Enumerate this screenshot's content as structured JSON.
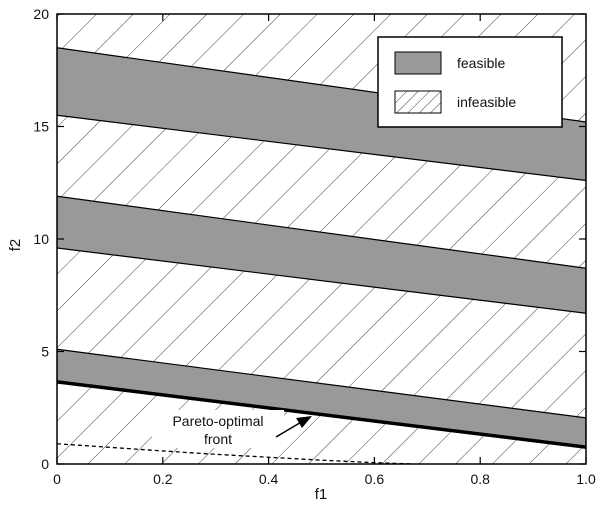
{
  "chart_data": {
    "type": "area",
    "title": "",
    "xlabel": "f1",
    "ylabel": "f2",
    "xlim": [
      0,
      1
    ],
    "ylim": [
      0,
      20
    ],
    "x_ticks": [
      "0",
      "0.2",
      "0.4",
      "0.6",
      "0.8",
      "1.0"
    ],
    "y_ticks": [
      "0",
      "5",
      "10",
      "15",
      "20"
    ],
    "grid": false,
    "legend_position": "top-right",
    "legend": [
      {
        "label": "feasible",
        "style": "filled",
        "color": "#999999"
      },
      {
        "label": "infeasible",
        "style": "hatched"
      }
    ],
    "regions": [
      {
        "type": "feasible",
        "x": [
          0,
          1
        ],
        "lower": [
          3.65,
          0.75
        ],
        "upper": [
          5.1,
          2.05
        ]
      },
      {
        "type": "feasible",
        "x": [
          0,
          1
        ],
        "lower": [
          9.6,
          6.7
        ],
        "upper": [
          11.9,
          8.7
        ]
      },
      {
        "type": "feasible",
        "x": [
          0,
          1
        ],
        "lower": [
          15.5,
          12.6
        ],
        "upper": [
          18.5,
          15.2
        ]
      }
    ],
    "pareto_front": {
      "x": [
        0,
        1
      ],
      "y": [
        3.65,
        0.75
      ]
    },
    "dashed_curve": {
      "x": [
        0,
        0.1,
        0.2,
        0.3,
        0.4,
        0.5,
        0.6,
        0.65,
        0.67
      ],
      "y": [
        0.9,
        0.74,
        0.58,
        0.43,
        0.3,
        0.17,
        0.06,
        0.02,
        0
      ]
    },
    "annotations": [
      {
        "text": "Pareto-optimal",
        "x": 0.38,
        "y": 1.75
      },
      {
        "text": "front",
        "x": 0.38,
        "y": 0.9
      }
    ],
    "colors": {
      "feasible_fill": "#999999",
      "hatch": "#444444",
      "frame": "#000000"
    }
  }
}
